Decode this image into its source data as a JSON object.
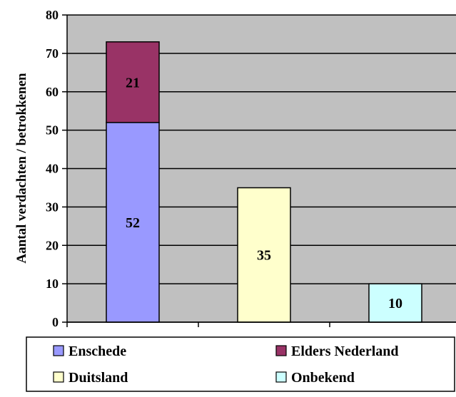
{
  "chart_data": {
    "type": "bar",
    "stacked": true,
    "ylabel": "Aantal verdachten / betrokkenen",
    "ylim": [
      0,
      80
    ],
    "yticks": [
      0,
      10,
      20,
      30,
      40,
      50,
      60,
      70,
      80
    ],
    "grid": true,
    "legend_position": "bottom",
    "x_slots": 3,
    "background_color": "#c0c0c0",
    "series": [
      {
        "name": "Enschede",
        "color": "#9999ff",
        "slot": 0,
        "base": 0,
        "value": 52,
        "label": "52"
      },
      {
        "name": "Elders Nederland",
        "color": "#993366",
        "slot": 0,
        "base": 52,
        "value": 21,
        "label": "21"
      },
      {
        "name": "Duitsland",
        "color": "#ffffcc",
        "slot": 1,
        "base": 0,
        "value": 35,
        "label": "35"
      },
      {
        "name": "Onbekend",
        "color": "#ccffff",
        "slot": 2,
        "base": 0,
        "value": 10,
        "label": "10"
      }
    ]
  }
}
